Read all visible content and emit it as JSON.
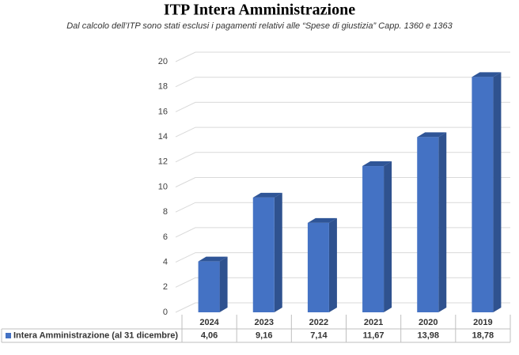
{
  "chart_data": {
    "type": "bar",
    "title": "ITP Intera Amministrazione",
    "subtitle": "Dal calcolo dell’ITP sono stati esclusi i pagamenti relativi alle “Spese di giustizia” Capp. 1360 e 1363",
    "categories": [
      "2024",
      "2023",
      "2022",
      "2021",
      "2020",
      "2019"
    ],
    "series": [
      {
        "name": "Intera Amministrazione (al 31 dicembre)",
        "color": "#4472c4",
        "values": [
          4.06,
          9.16,
          7.14,
          11.67,
          13.98,
          18.78
        ],
        "value_labels": [
          "4,06",
          "9,16",
          "7,14",
          "11,67",
          "13,98",
          "18,78"
        ]
      }
    ],
    "ylim": [
      0,
      20
    ],
    "yticks": [
      0,
      2,
      4,
      6,
      8,
      10,
      12,
      14,
      16,
      18,
      20
    ],
    "grid": true
  }
}
